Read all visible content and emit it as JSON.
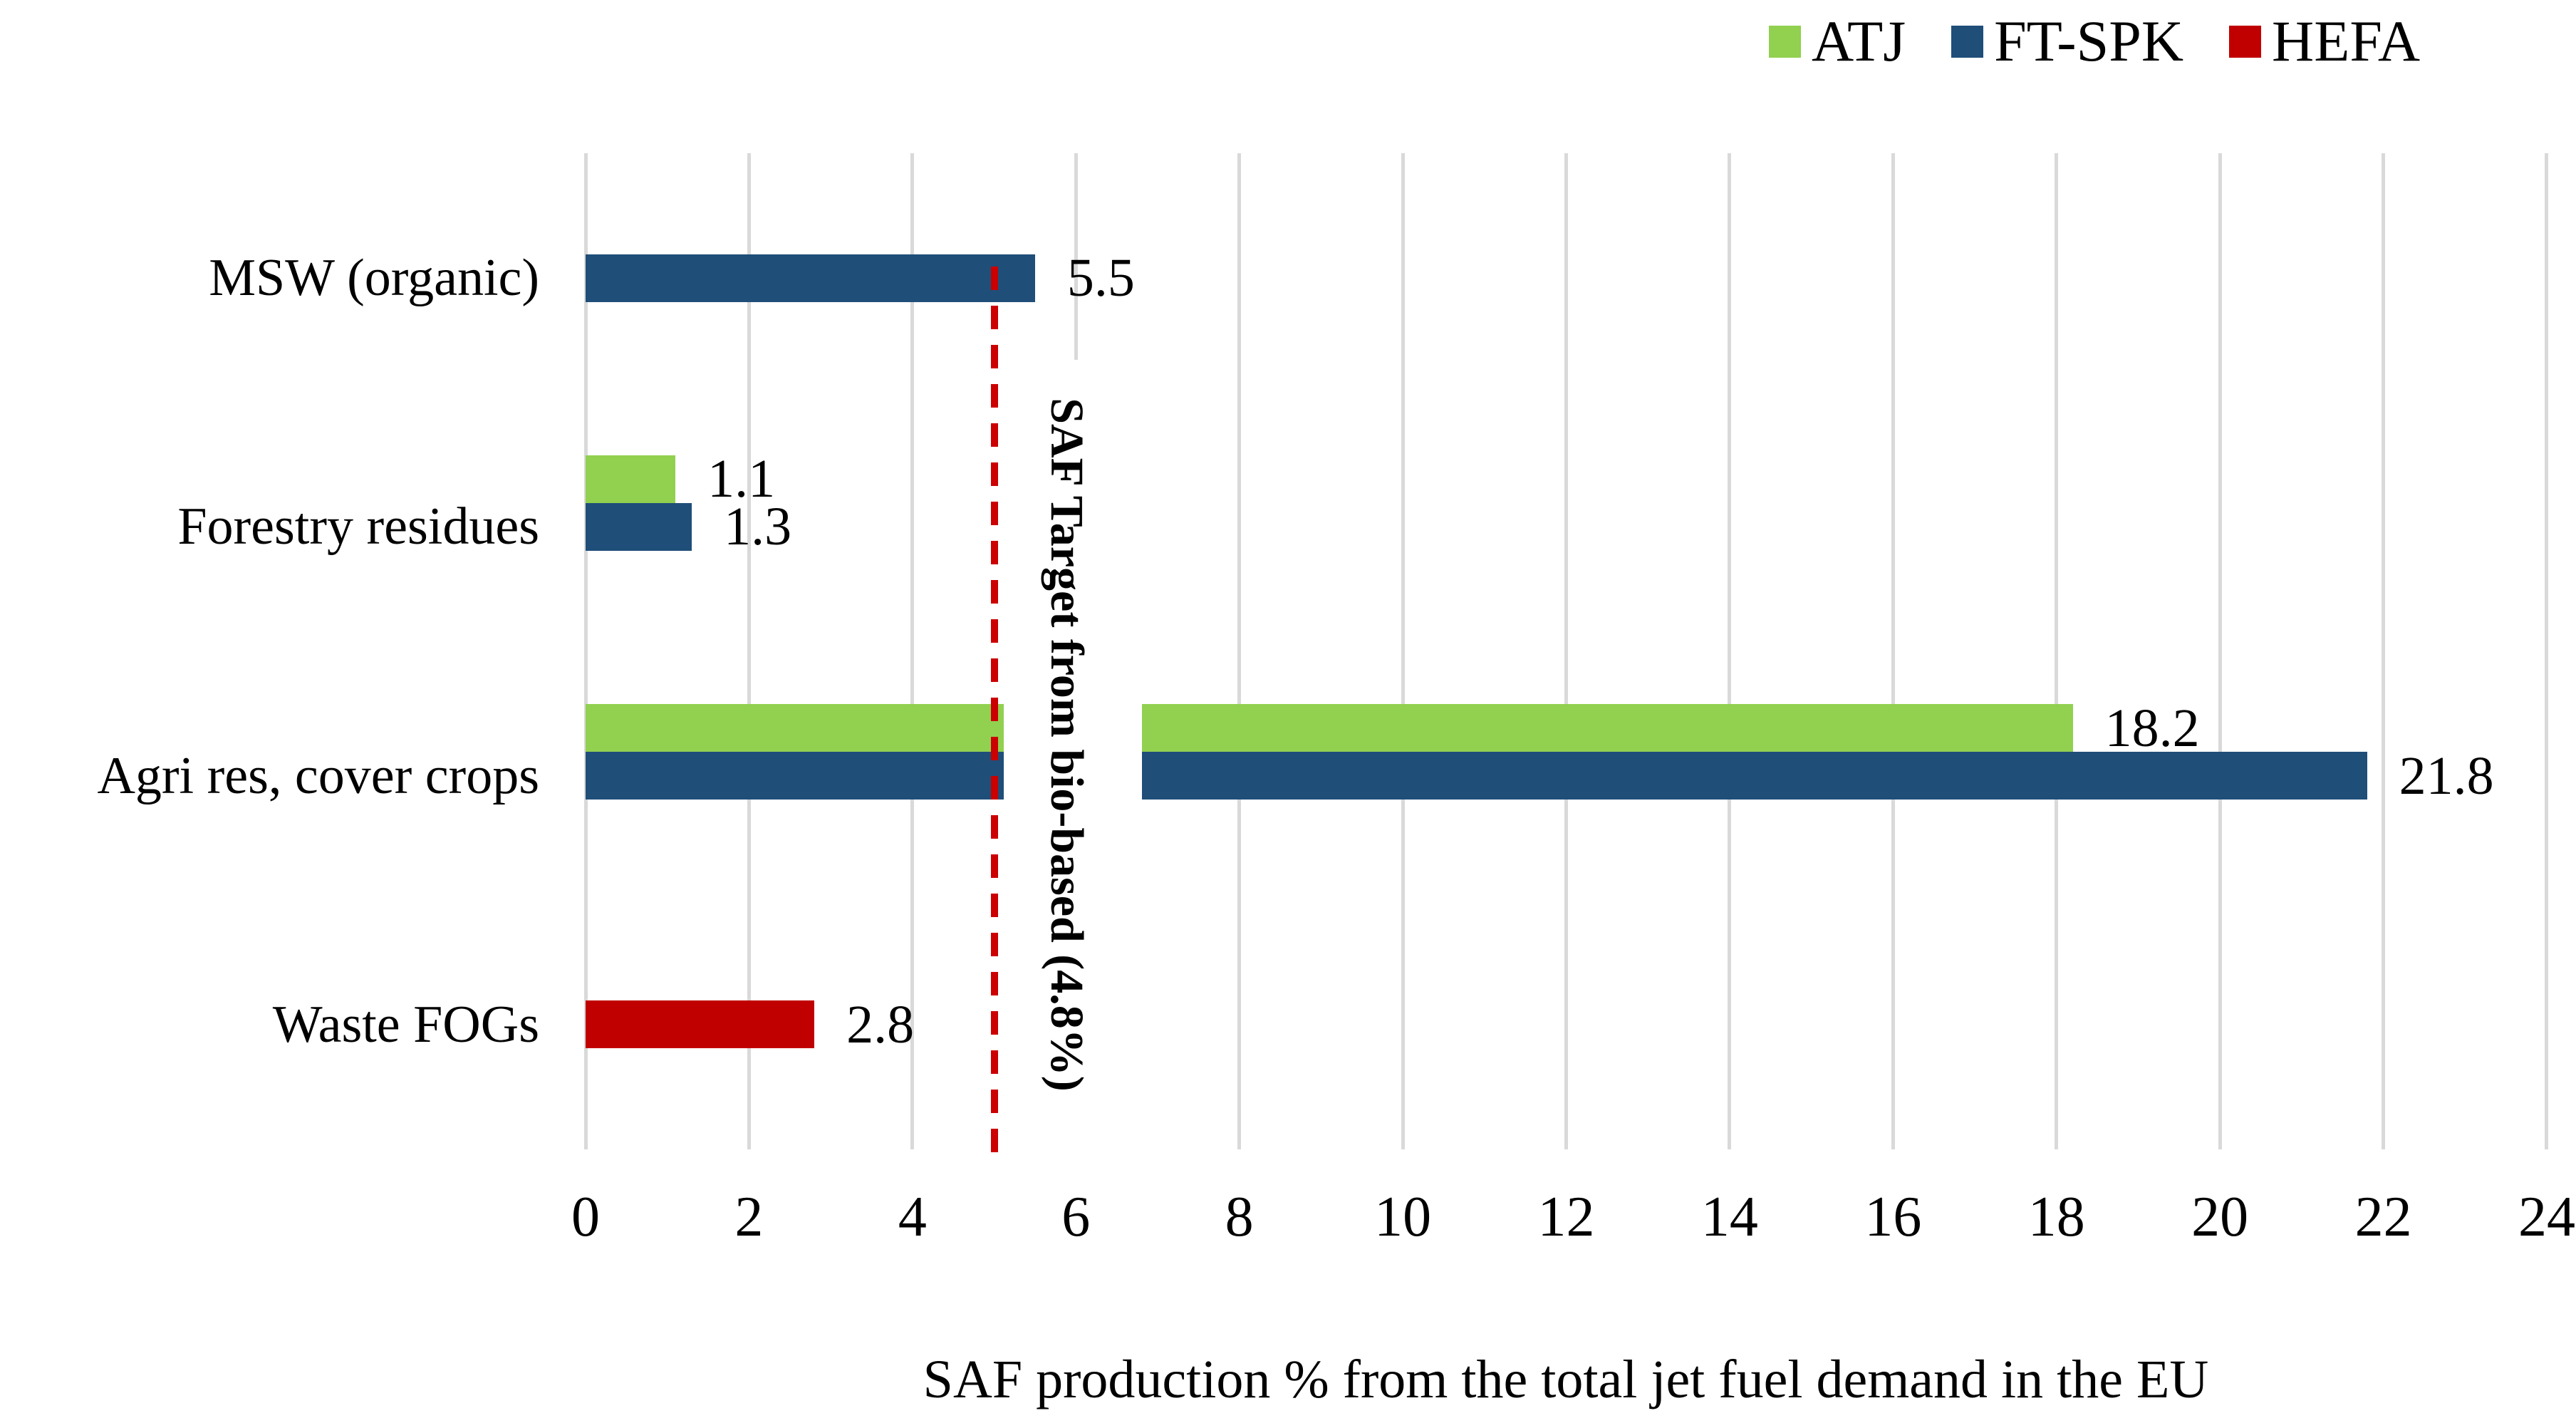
{
  "legend": {
    "items": [
      {
        "label": "ATJ",
        "color": "#92D050"
      },
      {
        "label": "FT-SPK",
        "color": "#1F4E79"
      },
      {
        "label": "HEFA",
        "color": "#C00000"
      }
    ]
  },
  "chart_data": {
    "type": "bar",
    "orientation": "horizontal",
    "xlabel": "SAF production % from the total jet fuel demand in the EU",
    "xlim": [
      0,
      24
    ],
    "xticks": [
      "0",
      "2",
      "4",
      "6",
      "8",
      "10",
      "12",
      "14",
      "16",
      "18",
      "20",
      "22",
      "24"
    ],
    "grid": true,
    "gridline_color": "#D9D9D9",
    "legend_position": "top-right",
    "categories": [
      "MSW (organic)",
      "Forestry residues",
      "Agri res, cover crops",
      "Waste FOGs"
    ],
    "series": [
      {
        "name": "ATJ",
        "color": "#92D050",
        "values": [
          null,
          1.1,
          18.2,
          null
        ],
        "labels": [
          null,
          "1.1",
          "18.2",
          null
        ]
      },
      {
        "name": "FT-SPK",
        "color": "#1F4E79",
        "values": [
          5.5,
          1.3,
          21.8,
          null
        ],
        "labels": [
          "5.5",
          "1.3",
          "21.8",
          null
        ]
      },
      {
        "name": "HEFA",
        "color": "#C00000",
        "values": [
          null,
          null,
          null,
          2.8
        ],
        "labels": [
          null,
          null,
          null,
          "2.8"
        ]
      }
    ],
    "target_line": {
      "value": 5,
      "label": "SAF Target from bio-based (4.8%)",
      "color": "#CC0000",
      "style": "dashed"
    }
  }
}
